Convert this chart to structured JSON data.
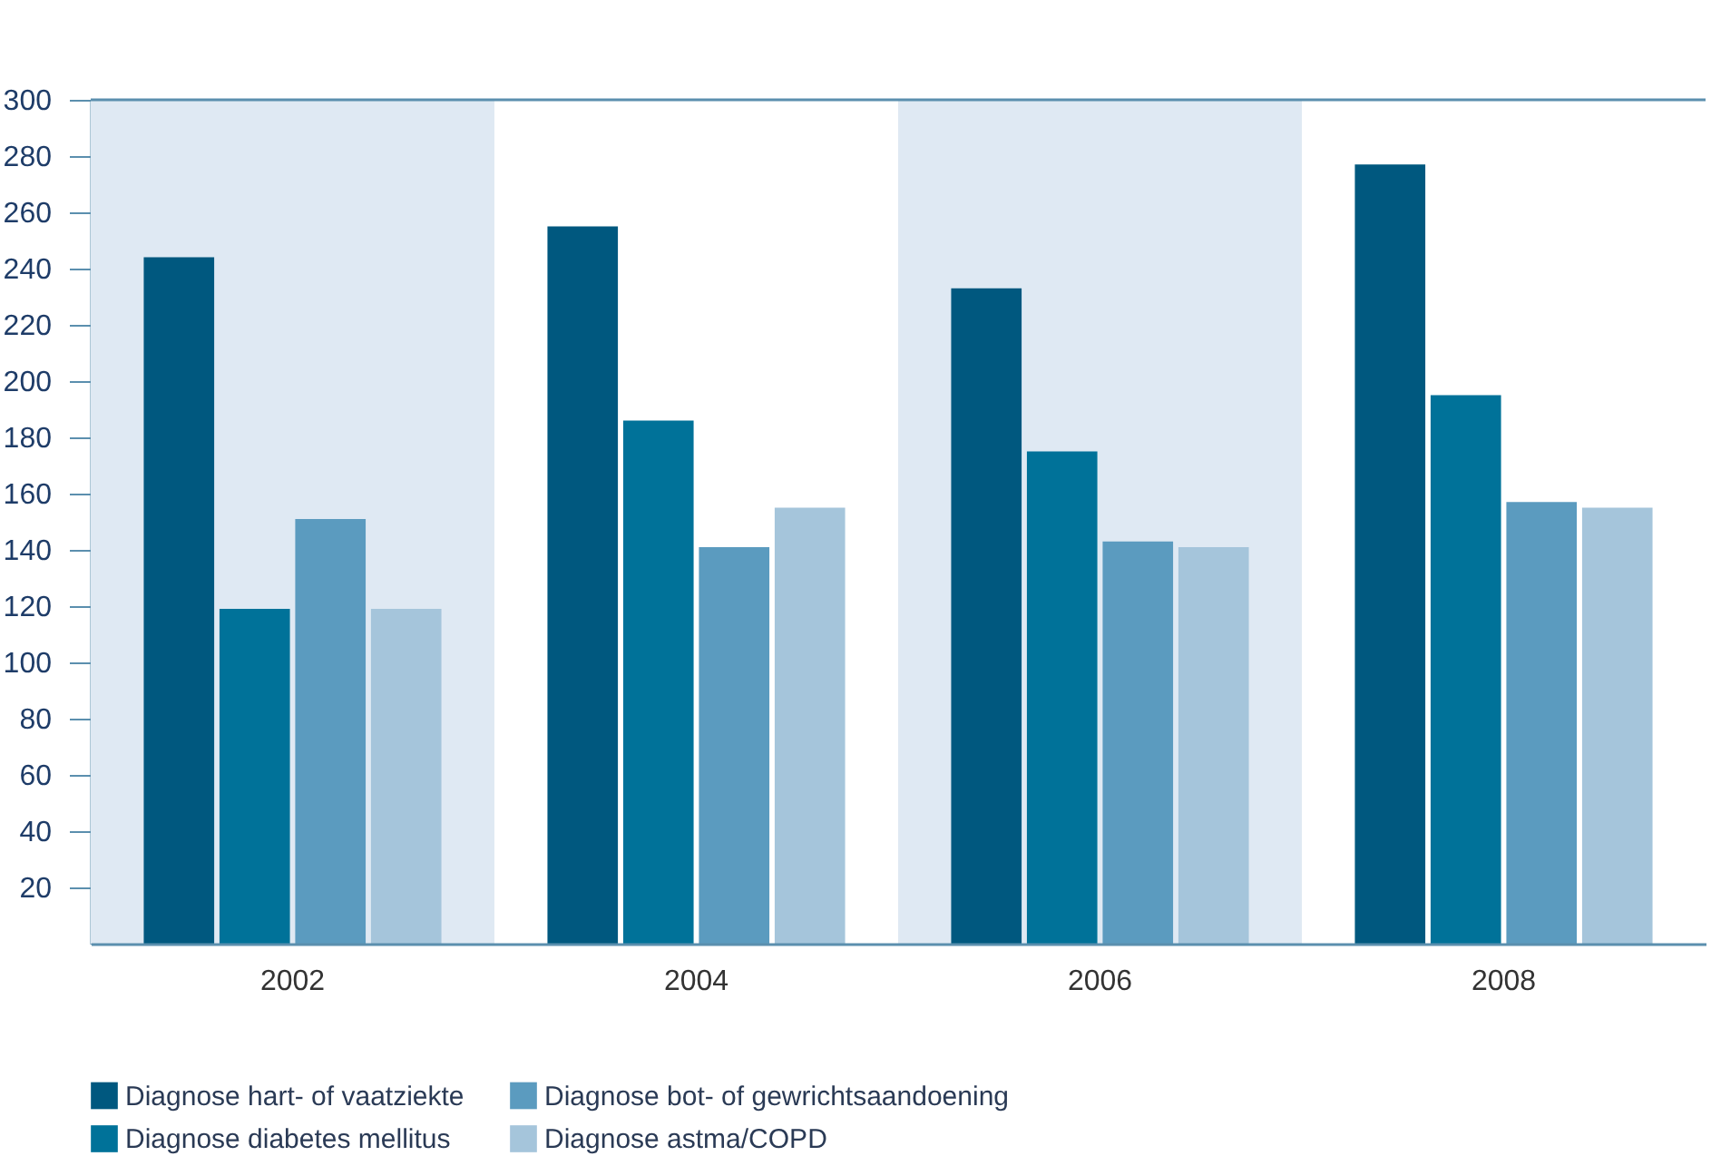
{
  "chart_data": {
    "type": "bar",
    "categories": [
      "2002",
      "2004",
      "2006",
      "2008"
    ],
    "series": [
      {
        "name": "Diagnose hart- of vaatziekte",
        "color": "#00587f",
        "values": [
          244,
          255,
          233,
          277
        ]
      },
      {
        "name": "Diagnose diabetes mellitus",
        "color": "#007299",
        "values": [
          119,
          186,
          175,
          195
        ]
      },
      {
        "name": "Diagnose bot- of gewrichtsaandoening",
        "color": "#5b9bbf",
        "values": [
          151,
          141,
          143,
          157
        ]
      },
      {
        "name": "Diagnose astma/COPD",
        "color": "#a5c5db",
        "values": [
          119,
          155,
          141,
          155
        ]
      }
    ],
    "ylim": [
      0,
      300
    ],
    "yticks": [
      20,
      40,
      60,
      80,
      100,
      120,
      140,
      160,
      180,
      200,
      220,
      240,
      260,
      280,
      300
    ],
    "bands": [
      {
        "axis": "x",
        "from": "2002",
        "to": "2002",
        "color": "#dfe9f3"
      },
      {
        "axis": "x",
        "from": "2006",
        "to": "2006",
        "color": "#dfe9f3"
      }
    ],
    "grid": false,
    "legend": "bottom left"
  }
}
